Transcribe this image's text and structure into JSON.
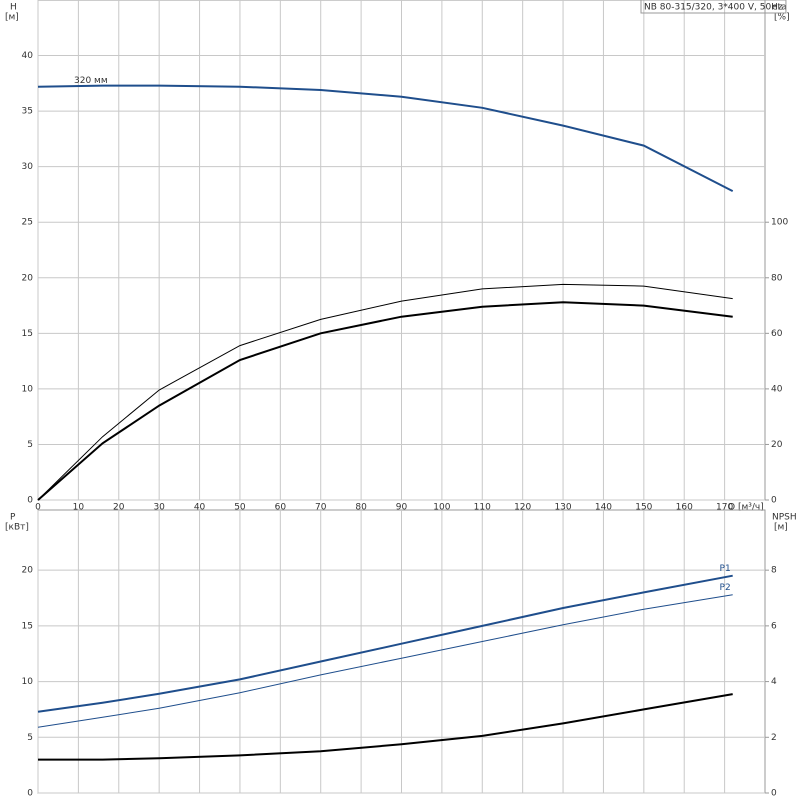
{
  "chart_data": [
    {
      "type": "line",
      "title": "NB 80-315/320, 3*400 V, 50Hz",
      "y_label": "H",
      "y_unit": "[м]",
      "y2_label": "eta",
      "y2_unit": "[%]",
      "x_label": "Q [м³/ч]",
      "x": [
        0,
        16,
        30,
        50,
        70,
        90,
        110,
        130,
        150,
        172
      ],
      "xlim": [
        0,
        180
      ],
      "xticks": [
        0,
        10,
        20,
        30,
        40,
        50,
        60,
        70,
        80,
        90,
        100,
        110,
        120,
        130,
        140,
        150,
        160,
        170
      ],
      "ylim": [
        0,
        45
      ],
      "yticks": [
        0,
        5,
        10,
        15,
        20,
        25,
        30,
        35,
        40
      ],
      "y2lim": [
        0,
        180
      ],
      "y2ticks": [
        0,
        20,
        40,
        60,
        80,
        100
      ],
      "grid": true,
      "series": [
        {
          "name": "320 мм",
          "name_position": "start",
          "color": "#1f4e8c",
          "width": 2,
          "values": [
            37.2,
            37.3,
            37.3,
            37.2,
            36.9,
            36.3,
            35.3,
            33.7,
            31.9,
            27.8
          ]
        },
        {
          "color": "#000000",
          "width": 1,
          "axis": "y2",
          "values": [
            0,
            22.8,
            39.6,
            55.6,
            65,
            71.6,
            76,
            77.6,
            77,
            72.5
          ]
        },
        {
          "color": "#000000",
          "width": 2,
          "axis": "y2",
          "values": [
            0,
            20.4,
            34,
            50.4,
            60,
            66,
            69.6,
            71.2,
            70,
            66
          ]
        }
      ]
    },
    {
      "type": "line",
      "y_label": "P",
      "y_unit": "[кВт]",
      "y2_label": "NPSH",
      "y2_unit": "[м]",
      "x": [
        0,
        16,
        30,
        50,
        70,
        90,
        110,
        130,
        150,
        172
      ],
      "xlim": [
        0,
        180
      ],
      "xticks": [
        0,
        10,
        20,
        30,
        40,
        50,
        60,
        70,
        80,
        90,
        100,
        110,
        120,
        130,
        140,
        150,
        160,
        170
      ],
      "ylim": [
        0,
        25.4
      ],
      "yticks": [
        0,
        5,
        10,
        15,
        20
      ],
      "y2lim": [
        0,
        10.16
      ],
      "y2ticks": [
        0,
        2,
        4,
        6,
        8
      ],
      "grid": true,
      "series": [
        {
          "name": "P1",
          "name_position": "end",
          "color": "#1f4e8c",
          "width": 2,
          "values": [
            7.3,
            8.1,
            8.9,
            10.2,
            11.8,
            13.4,
            15.0,
            16.6,
            18.0,
            19.5
          ]
        },
        {
          "name": "P2",
          "name_position": "end",
          "color": "#1f4e8c",
          "width": 1,
          "values": [
            5.9,
            6.8,
            7.6,
            9.0,
            10.6,
            12.1,
            13.6,
            15.1,
            16.5,
            17.8
          ]
        },
        {
          "color": "#000000",
          "width": 2,
          "axis": "y2",
          "values": [
            1.2,
            1.2,
            1.25,
            1.35,
            1.5,
            1.75,
            2.05,
            2.5,
            3.0,
            3.55
          ]
        }
      ]
    }
  ]
}
